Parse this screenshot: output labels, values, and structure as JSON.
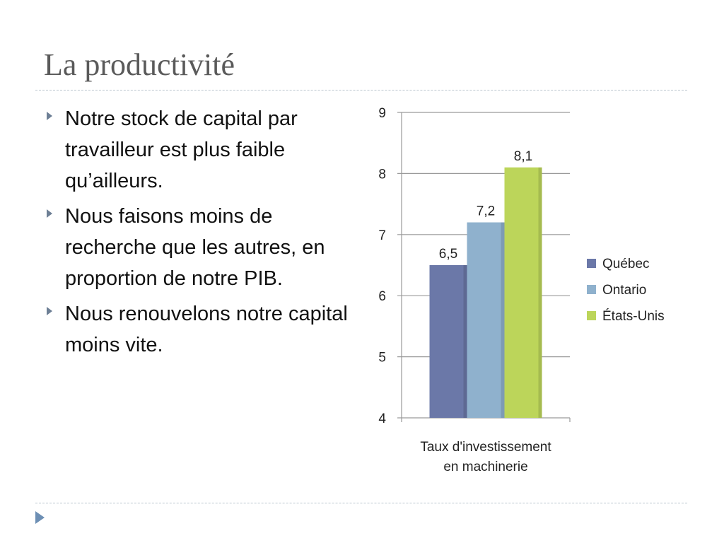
{
  "slide": {
    "title": "La productivité",
    "bullets": [
      "Notre stock de capital par travailleur est plus faible qu’ailleurs.",
      "Nous faisons moins de recherche que les autres, en proportion de notre PIB.",
      "Nous renouvelons notre capital moins vite."
    ]
  },
  "chart_data": {
    "type": "bar",
    "categories": [
      [
        "Taux d'investissement",
        "en machinerie"
      ]
    ],
    "series": [
      {
        "name": "Québec",
        "values": [
          6.5
        ],
        "label": "6,5",
        "color": "#6b78a8"
      },
      {
        "name": "Ontario",
        "values": [
          7.2
        ],
        "label": "7,2",
        "color": "#8fb1cd"
      },
      {
        "name": "États-Unis",
        "values": [
          8.1
        ],
        "label": "8,1",
        "color": "#bcd55a"
      }
    ],
    "ylim": [
      4,
      9
    ],
    "yticks": [
      "4",
      "5",
      "6",
      "7",
      "8",
      "9"
    ],
    "grid": true,
    "legend_position": "right"
  }
}
